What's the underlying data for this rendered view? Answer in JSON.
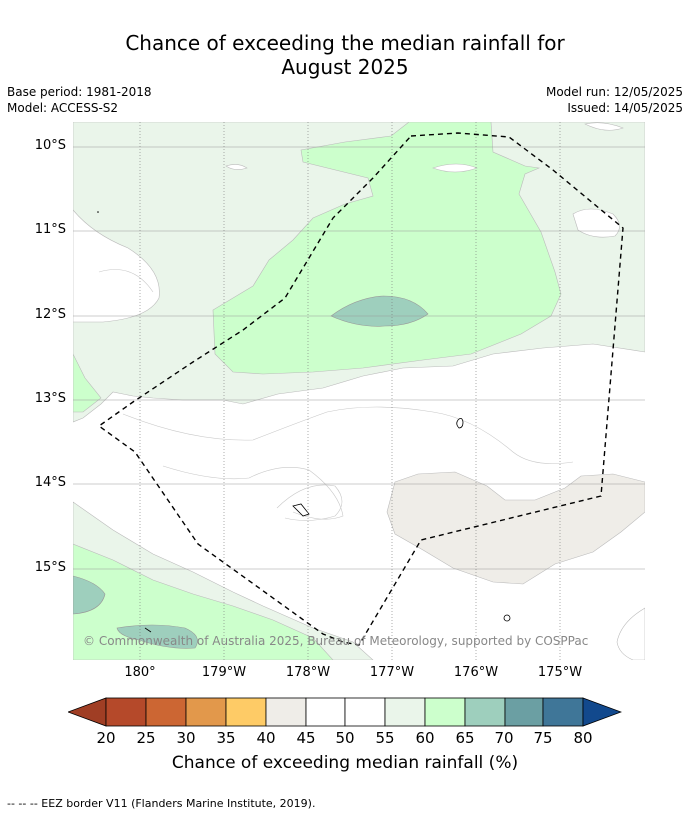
{
  "title": {
    "line1": "Chance of exceeding the median rainfall for",
    "line2": "August 2025"
  },
  "meta": {
    "base_period": "Base period: 1981-2018",
    "model": "Model: ACCESS-S2",
    "model_run": "Model run: 12/05/2025",
    "issued": "Issued: 14/05/2025"
  },
  "map": {
    "lat_labels": [
      "10°S",
      "11°S",
      "12°S",
      "13°S",
      "14°S",
      "15°S"
    ],
    "lon_labels": [
      "180°",
      "179°W",
      "178°W",
      "177°W",
      "176°W",
      "175°W"
    ],
    "copyright": "© Commonwealth of Australia 2025, Bureau of Meteorology, supported by COSPPac",
    "colors": {
      "c55_60": "#eaf5ea",
      "c60_65": "#ccffcc",
      "c65_70": "#9ecfbd",
      "c40_45": "#efede8",
      "gridline": "#999999",
      "eez_border": "#000000"
    }
  },
  "colorbar": {
    "ticks": [
      "20",
      "25",
      "30",
      "35",
      "40",
      "45",
      "50",
      "55",
      "60",
      "65",
      "70",
      "75",
      "80"
    ],
    "colors": [
      "#a03e24",
      "#b5492a",
      "#cc6633",
      "#e2984b",
      "#fecb66",
      "#efede8",
      "#ffffff",
      "#ffffff",
      "#eaf5ea",
      "#ccffcc",
      "#9ecfbd",
      "#6b9fa3",
      "#3f7698",
      "#12498d"
    ],
    "label": "Chance of exceeding median rainfall (%)"
  },
  "footer": "--  --  -- EEZ border V11 (Flanders Marine Institute, 2019)."
}
